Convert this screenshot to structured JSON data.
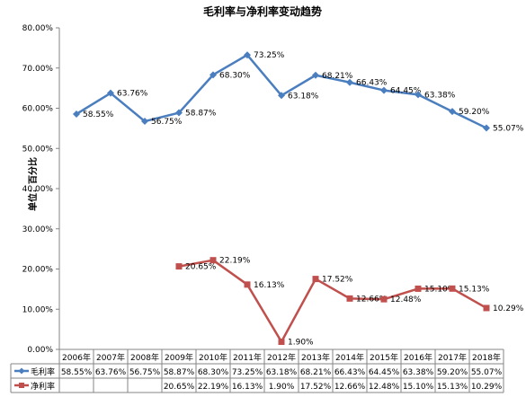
{
  "chart_data": {
    "type": "line",
    "title": "毛利率与净利率变动趋势",
    "ylabel": "单位：百分比",
    "xlabel": "",
    "ylim": [
      0,
      80
    ],
    "yticks": [
      "0.00%",
      "10.00%",
      "20.00%",
      "30.00%",
      "40.00%",
      "50.00%",
      "60.00%",
      "70.00%",
      "80.00%"
    ],
    "grid": false,
    "legend": "data-table",
    "categories": [
      "2006年",
      "2007年",
      "2008年",
      "2009年",
      "2010年",
      "2011年",
      "2012年",
      "2013年",
      "2014年",
      "2015年",
      "2016年",
      "2017年",
      "2018年"
    ],
    "series": [
      {
        "name": "毛利率",
        "color": "#4a7ebf",
        "marker": "diamond",
        "values": [
          58.55,
          63.76,
          56.75,
          58.87,
          68.3,
          73.25,
          63.18,
          68.21,
          66.43,
          64.45,
          63.38,
          59.2,
          55.07
        ],
        "labels": [
          "58.55%",
          "63.76%",
          "56.75%",
          "58.87%",
          "68.30%",
          "73.25%",
          "63.18%",
          "68.21%",
          "66.43%",
          "64.45%",
          "63.38%",
          "59.20%",
          "55.07%"
        ]
      },
      {
        "name": "净利率",
        "color": "#c0504d",
        "marker": "square",
        "values": [
          null,
          null,
          null,
          20.65,
          22.19,
          16.13,
          1.9,
          17.52,
          12.66,
          12.48,
          15.1,
          15.13,
          10.29
        ],
        "labels": [
          "",
          "",
          "",
          "20.65%",
          "22.19%",
          "16.13%",
          "1.90%",
          "17.52%",
          "12.66%",
          "12.48%",
          "15.10%",
          "15.13%",
          "10.29%"
        ]
      }
    ],
    "table_rows": [
      [
        "58.55%",
        "63.76%",
        "56.75%",
        "58.87%",
        "68.30%",
        "73.25%",
        "63.18%",
        "68.21%",
        "66.43%",
        "64.45%",
        "63.38%",
        "59.20%",
        "55.07%"
      ],
      [
        "",
        "",
        "",
        "20.65%",
        "22.19%",
        "16.13%",
        "1.90%",
        "17.52%",
        "12.66%",
        "12.48%",
        "15.10%",
        "15.13%",
        "10.29%"
      ]
    ]
  }
}
